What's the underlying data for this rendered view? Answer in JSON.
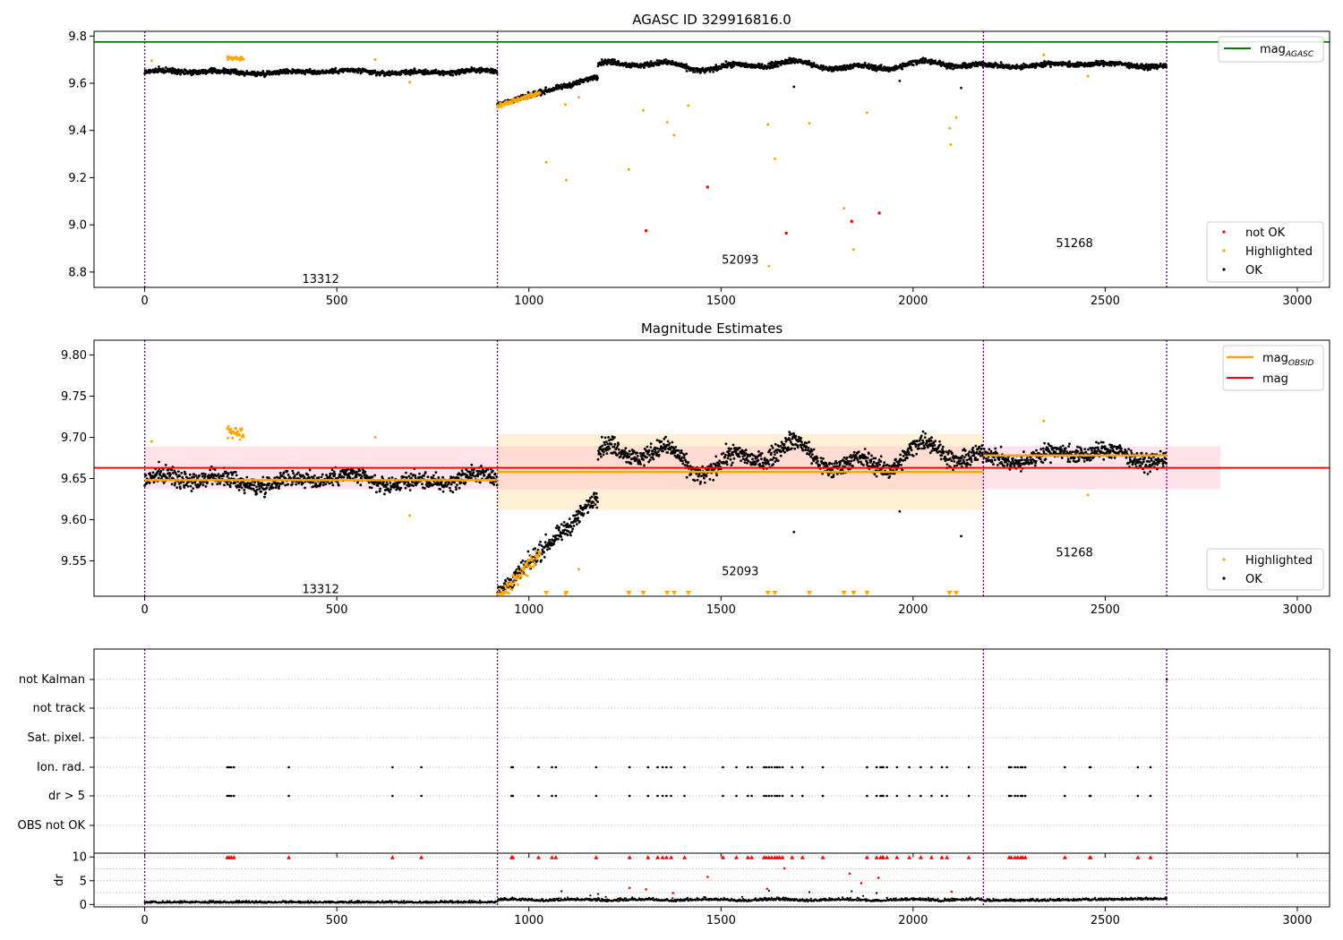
{
  "colors": {
    "ok": "#000000",
    "highlighted": "#ffa500",
    "not_ok": "#ff0000",
    "mag_agasc": "#008000",
    "mag": "#ff0000",
    "mag_obsid": "#ffa500",
    "obs_boundary": "#800080",
    "mag_band": "#ffc0cb",
    "obsid_band": "#ffe4b5"
  },
  "chart_data": [
    {
      "type": "scatter",
      "title": "AGASC ID 329916816.0",
      "xlim": [
        -132,
        3084
      ],
      "ylim": [
        8.735,
        9.82
      ],
      "xticks": [
        0,
        500,
        1000,
        1500,
        2000,
        2500,
        3000
      ],
      "yticks": [
        8.8,
        9.0,
        9.2,
        9.4,
        9.6,
        9.8
      ],
      "ytick_labels": [
        "8.8",
        "9.0",
        "9.2",
        "9.4",
        "9.6",
        "9.8"
      ],
      "mag_agasc": 9.775,
      "obs_boundaries": [
        0,
        918,
        2183,
        2660
      ],
      "obs_labels": [
        {
          "text": "13312",
          "x": 458,
          "y": 8.77
        },
        {
          "text": "52093",
          "x": 1550,
          "y": 8.85
        },
        {
          "text": "51268",
          "x": 2420,
          "y": 8.92
        }
      ],
      "segments": [
        {
          "x0": 0,
          "x1": 918,
          "level": 9.648,
          "noise": 0.012,
          "wave": 0.008
        },
        {
          "x0": 918,
          "x1": 1180,
          "start": 9.51,
          "end": 9.63,
          "noise": 0.012,
          "wave": 0.004
        },
        {
          "x0": 1180,
          "x1": 2183,
          "level": 9.675,
          "noise": 0.013,
          "wave": 0.022
        },
        {
          "x0": 2183,
          "x1": 2660,
          "level": 9.678,
          "noise": 0.012,
          "wave": 0.01
        }
      ],
      "highlighted_clusters": [
        {
          "x0": 215,
          "x1": 258,
          "level": 9.705
        },
        {
          "x0": 918,
          "x1": 1030,
          "start": 9.505,
          "end": 9.56
        }
      ],
      "highlighted_points": [
        [
          18,
          9.695
        ],
        [
          600,
          9.7
        ],
        [
          690,
          9.605
        ],
        [
          1045,
          9.265
        ],
        [
          1095,
          9.51
        ],
        [
          1097,
          9.19
        ],
        [
          1130,
          9.54
        ],
        [
          1260,
          9.235
        ],
        [
          1298,
          9.485
        ],
        [
          1360,
          9.435
        ],
        [
          1378,
          9.38
        ],
        [
          1415,
          9.505
        ],
        [
          1622,
          9.425
        ],
        [
          1625,
          8.825
        ],
        [
          1640,
          9.28
        ],
        [
          1730,
          9.43
        ],
        [
          1820,
          9.07
        ],
        [
          1845,
          8.895
        ],
        [
          1880,
          9.475
        ],
        [
          2095,
          9.41
        ],
        [
          2098,
          9.34
        ],
        [
          2112,
          9.455
        ],
        [
          2455,
          9.63
        ],
        [
          2340,
          9.72
        ]
      ],
      "not_ok_points": [
        [
          1305,
          8.975
        ],
        [
          1465,
          9.16
        ],
        [
          1670,
          8.965
        ],
        [
          1840,
          9.015
        ],
        [
          1912,
          9.05
        ]
      ],
      "outliers_ok": [
        [
          1690,
          9.585
        ],
        [
          1965,
          9.61
        ],
        [
          2125,
          9.58
        ]
      ],
      "legend_position": "top-right",
      "legend": [
        {
          "label": "mag",
          "sub": "AGASC",
          "kind": "line",
          "color": "#008000"
        }
      ],
      "legend2_position": "bottom-right",
      "legend2": [
        {
          "label": "not OK",
          "kind": "dot",
          "color": "#ff0000"
        },
        {
          "label": "Highlighted",
          "kind": "dot",
          "color": "#ffa500"
        },
        {
          "label": "OK",
          "kind": "dot",
          "color": "#000000"
        }
      ]
    },
    {
      "type": "scatter",
      "title": "Magnitude Estimates",
      "xlim": [
        -132,
        3084
      ],
      "ylim": [
        9.507,
        9.818
      ],
      "xticks": [
        0,
        500,
        1000,
        1500,
        2000,
        2500,
        3000
      ],
      "yticks": [
        9.55,
        9.6,
        9.65,
        9.7,
        9.75,
        9.8
      ],
      "ytick_labels": [
        "9.55",
        "9.60",
        "9.65",
        "9.70",
        "9.75",
        "9.80"
      ],
      "mag": 9.663,
      "mag_band": [
        9.637,
        9.689
      ],
      "mag_band_x": [
        0,
        2800
      ],
      "obs_boundaries": [
        0,
        918,
        2183,
        2660
      ],
      "obsid_mags": [
        {
          "x0": 0,
          "x1": 918,
          "mag": 9.648
        },
        {
          "x0": 918,
          "x1": 2183,
          "mag": 9.658,
          "band": [
            9.612,
            9.704
          ]
        },
        {
          "x0": 2183,
          "x1": 2660,
          "mag": 9.678
        }
      ],
      "obs_labels": [
        {
          "text": "13312",
          "x": 458,
          "y": 9.515
        },
        {
          "text": "52093",
          "x": 1550,
          "y": 9.537
        },
        {
          "text": "51268",
          "x": 2420,
          "y": 9.56
        }
      ],
      "clipped_x": [
        1045,
        1097,
        1260,
        1298,
        1360,
        1378,
        1415,
        1622,
        1640,
        1730,
        1820,
        1845,
        1880,
        2095,
        2112
      ],
      "legend_position": "top-right",
      "legend": [
        {
          "label": "mag",
          "sub": "OBSID",
          "kind": "line",
          "color": "#ffa500"
        },
        {
          "label": "mag",
          "kind": "line",
          "color": "#ff0000"
        }
      ],
      "legend2_position": "bottom-right",
      "legend2": [
        {
          "label": "Highlighted",
          "kind": "dot",
          "color": "#ffa500"
        },
        {
          "label": "OK",
          "kind": "dot",
          "color": "#000000"
        }
      ]
    },
    {
      "type": "scatter",
      "xlim": [
        -132,
        3084
      ],
      "xticks": [
        0,
        500,
        1000,
        1500,
        2000,
        2500,
        3000
      ],
      "flag_labels": [
        "not Kalman",
        "not track",
        "Sat. pixel.",
        "Ion. rad.",
        "dr > 5",
        "OBS not OK"
      ],
      "flag_x": [
        215,
        220,
        225,
        232,
        375,
        645,
        720,
        955,
        958,
        1025,
        1060,
        1070,
        1175,
        1262,
        1310,
        1335,
        1348,
        1358,
        1370,
        1405,
        1505,
        1540,
        1570,
        1580,
        1612,
        1618,
        1625,
        1632,
        1640,
        1646,
        1652,
        1660,
        1685,
        1712,
        1765,
        1880,
        1905,
        1915,
        1920,
        1922,
        1932,
        1958,
        1990,
        2020,
        2048,
        2075,
        2088,
        2145,
        2250,
        2255,
        2265,
        2272,
        2280,
        2285,
        2292,
        2395,
        2460,
        2462,
        2585,
        2618
      ],
      "notkalman_x": [
        2660
      ],
      "dr_ylabel": "dr",
      "dr_ylim": [
        -0.5,
        10.8
      ],
      "dr_yticks": [
        0,
        5,
        10
      ],
      "dr_ytick_labels": [
        "0",
        "5",
        "10"
      ],
      "dr_clipped_value": 10,
      "dr_red_points": [
        [
          1262,
          3.5
        ],
        [
          1305,
          3.2
        ],
        [
          1375,
          2.4
        ],
        [
          1465,
          5.8
        ],
        [
          1620,
          3.3
        ],
        [
          1665,
          7.6
        ],
        [
          1835,
          6.5
        ],
        [
          1865,
          4.5
        ],
        [
          1910,
          5.6
        ],
        [
          2100,
          2.7
        ]
      ],
      "dr_bump_points": [
        [
          1085,
          2.8
        ],
        [
          1160,
          1.9
        ],
        [
          1180,
          2.2
        ],
        [
          1200,
          1.6
        ],
        [
          1555,
          1.6
        ],
        [
          1625,
          2.9
        ],
        [
          1730,
          2.6
        ],
        [
          1840,
          2.8
        ],
        [
          1870,
          1.8
        ],
        [
          1905,
          2.4
        ]
      ],
      "obs_boundaries": [
        0,
        918,
        2183,
        2660
      ]
    }
  ]
}
